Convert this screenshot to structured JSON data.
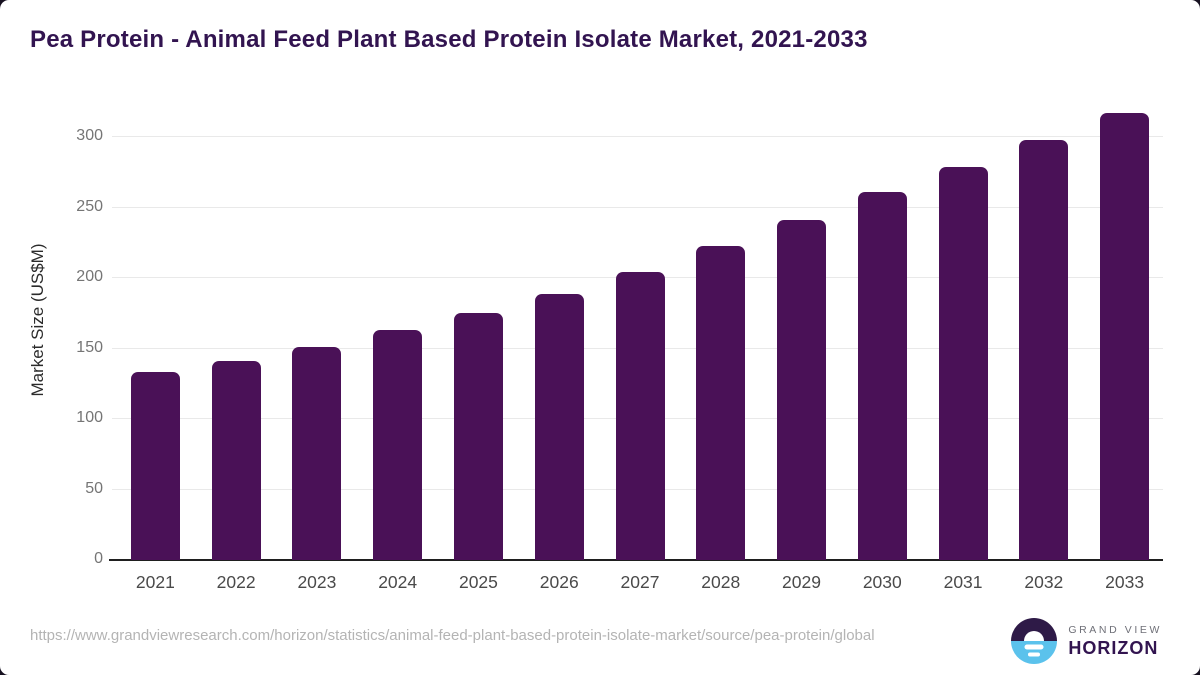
{
  "header": {
    "title": "Pea Protein - Animal Feed Plant Based Protein Isolate Market, 2021-2033",
    "title_color": "#321450"
  },
  "chart_data": {
    "type": "bar",
    "categories": [
      "2021",
      "2022",
      "2023",
      "2024",
      "2025",
      "2026",
      "2027",
      "2028",
      "2029",
      "2030",
      "2031",
      "2032",
      "2033"
    ],
    "values": [
      133,
      141,
      151,
      163,
      175,
      189,
      204,
      223,
      241,
      261,
      279,
      298,
      317
    ],
    "title": "",
    "xlabel": "",
    "ylabel": "Market Size (US$M)",
    "ylim": [
      0,
      326
    ],
    "yticks": [
      0,
      50,
      100,
      150,
      200,
      250,
      300
    ],
    "grid": true,
    "legend": "none",
    "bar_color": "#4a1157",
    "gridline_color": "#e9e9e9",
    "axis_line_color": "#1f1f1f",
    "ytick_label_color": "#757575",
    "xtick_label_color": "#4a4a4a"
  },
  "footer": {
    "source_url": "https://www.grandviewresearch.com/horizon/statistics/animal-feed-plant-based-protein-isolate-market/source/pea-protein/global",
    "logo": {
      "line1": "GRAND VIEW",
      "line2": "HORIZON",
      "mark_top_color": "#2e1a47",
      "mark_bottom_color": "#5bc2ec"
    }
  }
}
